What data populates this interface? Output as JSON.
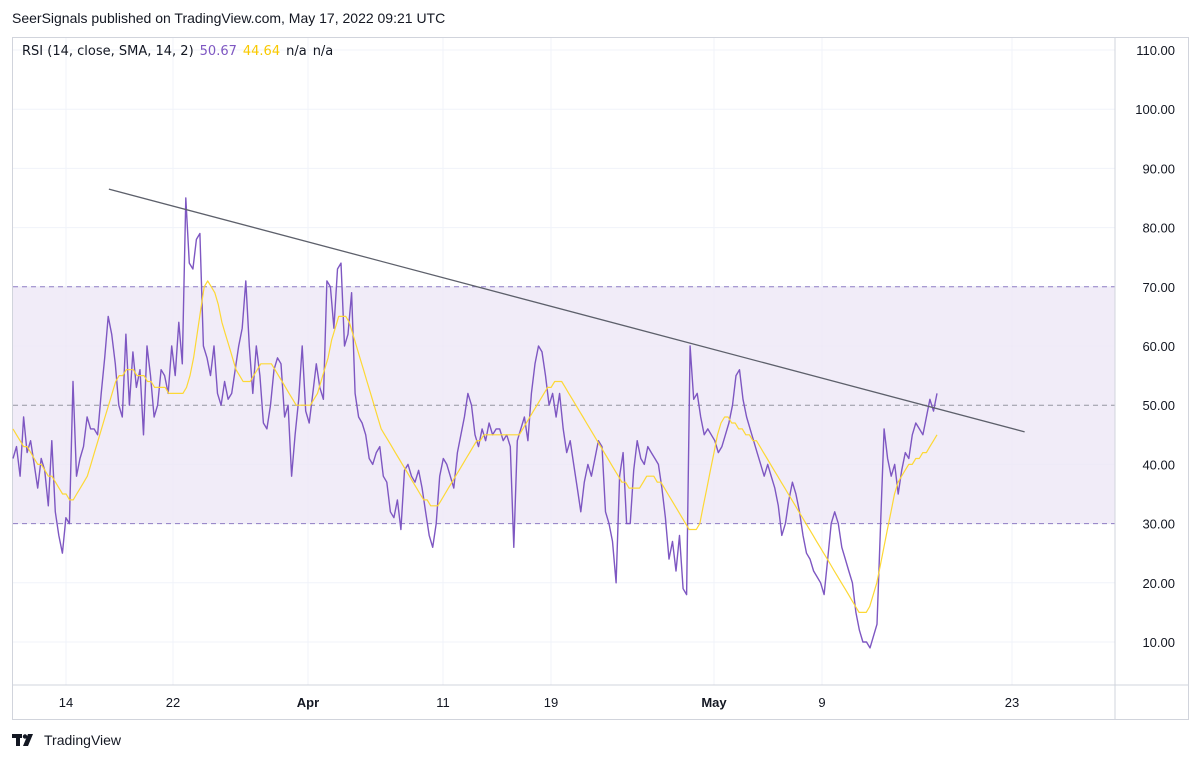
{
  "header": {
    "text": "SeerSignals published on TradingView.com, May 17, 2022 09:21 UTC"
  },
  "legend": {
    "indicator": "RSI (14, close, SMA, 14, 2)",
    "rsi_value": "50.67",
    "sma_value": "44.64",
    "na1": "n/a",
    "na2": "n/a"
  },
  "footer": {
    "brand": "TradingView"
  },
  "colors": {
    "rsi": "#7e57c2",
    "sma": "#fdd835",
    "band": "#ede7f6",
    "trendline": "#5d606b",
    "grid": "#f0f3fa",
    "dashed": "#7e57c2"
  },
  "chart_data": {
    "type": "line",
    "ylim": [
      0,
      110
    ],
    "y_ticks": [
      "10.00",
      "20.00",
      "30.00",
      "40.00",
      "50.00",
      "60.00",
      "70.00",
      "80.00",
      "90.00",
      "100.00",
      "110.00"
    ],
    "x_ticks": [
      {
        "label": "14",
        "bold": false
      },
      {
        "label": "22",
        "bold": false
      },
      {
        "label": "Apr",
        "bold": true
      },
      {
        "label": "11",
        "bold": false
      },
      {
        "label": "19",
        "bold": false
      },
      {
        "label": "May",
        "bold": true
      },
      {
        "label": "9",
        "bold": false
      },
      {
        "label": "23",
        "bold": false
      }
    ],
    "bands": {
      "upper": 70,
      "middle": 50,
      "lower": 30
    },
    "series": [
      {
        "values": [
          41,
          43,
          38,
          48,
          42,
          44,
          40,
          36,
          41,
          39,
          33,
          44,
          32,
          28,
          25,
          31,
          30,
          54,
          38,
          41,
          43,
          48,
          46,
          46,
          45,
          52,
          58,
          65,
          62,
          57,
          50,
          48,
          62,
          50,
          59,
          53,
          56,
          45,
          60,
          55,
          48,
          50,
          56,
          55,
          52,
          60,
          55,
          64,
          57,
          85,
          74,
          73,
          78,
          79,
          60,
          58,
          55,
          60,
          52,
          50,
          54,
          51,
          52,
          56,
          60,
          63,
          71,
          60,
          52,
          60,
          55,
          47,
          46,
          50,
          56,
          58,
          57,
          48,
          50,
          38,
          45,
          51,
          60,
          49,
          47,
          52,
          57,
          53,
          51,
          71,
          70,
          63,
          73,
          74,
          60,
          62,
          69,
          52,
          48,
          47,
          45,
          41,
          40,
          42,
          43,
          38,
          37,
          32,
          31,
          34,
          29,
          39,
          40,
          38,
          37,
          39,
          36,
          32,
          28,
          26,
          30,
          38,
          41,
          40,
          38,
          36,
          42,
          45,
          48,
          52,
          50,
          45,
          43,
          46,
          44,
          47,
          45,
          46,
          46,
          44,
          45,
          43,
          26,
          44,
          46,
          48,
          44,
          52,
          57,
          60,
          59,
          55,
          50,
          52,
          48,
          52,
          46,
          42,
          44,
          40,
          36,
          32,
          37,
          40,
          38,
          41,
          44,
          43,
          32,
          30,
          27,
          20,
          38,
          42,
          30,
          30,
          39,
          44,
          41,
          40,
          43,
          42,
          41,
          40,
          36,
          31,
          24,
          27,
          22,
          28,
          19,
          18,
          60,
          51,
          52,
          48,
          45,
          46,
          45,
          44,
          42,
          43,
          45,
          47,
          50,
          55,
          56,
          51,
          48,
          46,
          44,
          42,
          40,
          38,
          40,
          38,
          36,
          33,
          28,
          30,
          34,
          37,
          35,
          32,
          28,
          25,
          24,
          22,
          21,
          20,
          18,
          24,
          30,
          32,
          30,
          26,
          24,
          22,
          20,
          15,
          12,
          10,
          10,
          9,
          11,
          13,
          30,
          46,
          41,
          38,
          40,
          35,
          39,
          42,
          41,
          45,
          47,
          46,
          45,
          48,
          51,
          49,
          52
        ],
        "color_key": "rsi"
      },
      {
        "values": [
          46,
          45,
          44,
          43,
          43,
          42,
          41,
          40,
          40,
          39,
          38,
          38,
          37,
          36,
          35,
          35,
          34,
          34,
          35,
          36,
          37,
          38,
          40,
          42,
          44,
          46,
          48,
          50,
          52,
          54,
          55,
          55,
          56,
          56,
          56,
          55,
          55,
          55,
          54,
          54,
          53,
          53,
          53,
          53,
          52,
          52,
          52,
          52,
          52,
          53,
          55,
          58,
          62,
          66,
          70,
          71,
          70,
          69,
          67,
          64,
          62,
          60,
          58,
          56,
          55,
          54,
          54,
          54,
          55,
          56,
          57,
          57,
          57,
          57,
          56,
          55,
          54,
          53,
          52,
          51,
          50,
          50,
          50,
          50,
          50,
          51,
          52,
          54,
          56,
          58,
          61,
          63,
          65,
          65,
          65,
          64,
          62,
          60,
          58,
          56,
          54,
          52,
          50,
          48,
          46,
          45,
          44,
          43,
          42,
          41,
          40,
          39,
          38,
          37,
          36,
          35,
          34,
          34,
          33,
          33,
          33,
          34,
          35,
          36,
          37,
          38,
          39,
          40,
          41,
          42,
          43,
          44,
          44,
          45,
          45,
          45,
          45,
          45,
          45,
          45,
          45,
          45,
          45,
          45,
          46,
          47,
          48,
          49,
          50,
          51,
          52,
          53,
          53,
          54,
          54,
          54,
          53,
          52,
          51,
          50,
          49,
          48,
          47,
          46,
          45,
          44,
          43,
          42,
          41,
          40,
          39,
          38,
          37,
          37,
          36,
          36,
          36,
          36,
          37,
          38,
          38,
          38,
          37,
          37,
          36,
          35,
          34,
          33,
          32,
          31,
          30,
          29,
          29,
          29,
          30,
          33,
          36,
          39,
          42,
          45,
          47,
          48,
          48,
          47,
          47,
          46,
          46,
          45,
          45,
          44,
          44,
          43,
          42,
          41,
          40,
          39,
          38,
          37,
          36,
          35,
          34,
          33,
          32,
          31,
          30,
          29,
          28,
          27,
          26,
          25,
          24,
          23,
          22,
          21,
          20,
          19,
          18,
          17,
          16,
          15,
          15,
          15,
          16,
          18,
          20,
          23,
          26,
          29,
          32,
          35,
          37,
          38,
          39,
          40,
          40,
          41,
          41,
          42,
          42,
          43,
          44,
          45
        ],
        "color_key": "sma"
      }
    ],
    "trendline": {
      "start": [
        86.5,
        0.087
      ],
      "end": [
        45.5,
        0.918
      ]
    }
  }
}
